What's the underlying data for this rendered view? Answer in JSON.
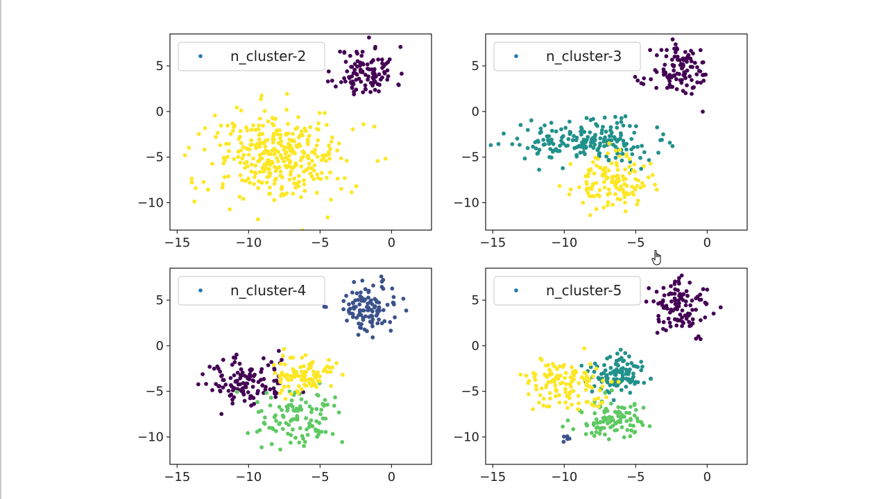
{
  "chart_data": [
    {
      "type": "scatter",
      "legend_label": "n_cluster-2",
      "legend_placement": "upper-left",
      "xlim": [
        -15.5,
        2.8
      ],
      "ylim": [
        -13.0,
        8.5
      ],
      "xticks": [
        "−15",
        "−10",
        "−5",
        "0"
      ],
      "xtick_values": [
        -15,
        -10,
        -5,
        0
      ],
      "yticks": [
        "5",
        "0",
        "−5",
        "−10"
      ],
      "ytick_values": [
        5,
        0,
        -5,
        -10
      ],
      "n_clusters": 2,
      "regions": [
        {
          "class": 0,
          "x": -1.8,
          "y": 4.3,
          "sx": 1.05,
          "sy": 1.4,
          "n": 110,
          "seed": 11
        },
        {
          "class": 1,
          "x": -7.8,
          "y": -5.0,
          "sx": 2.4,
          "sy": 2.6,
          "n": 330,
          "seed": 12
        }
      ]
    },
    {
      "type": "scatter",
      "legend_label": "n_cluster-3",
      "legend_placement": "upper-left",
      "xlim": [
        -15.5,
        2.8
      ],
      "ylim": [
        -13.0,
        8.5
      ],
      "xticks": [
        "−15",
        "−10",
        "−5",
        "0"
      ],
      "xtick_values": [
        -15,
        -10,
        -5,
        0
      ],
      "yticks": [
        "5",
        "0",
        "−5",
        "−10"
      ],
      "ytick_values": [
        5,
        0,
        -5,
        -10
      ],
      "n_clusters": 3,
      "regions": [
        {
          "class": 0,
          "x": -1.8,
          "y": 4.3,
          "sx": 1.05,
          "sy": 1.4,
          "n": 110,
          "seed": 21
        },
        {
          "class": 1,
          "x": -8.3,
          "y": -3.3,
          "sx": 2.3,
          "sy": 1.1,
          "n": 200,
          "seed": 22
        },
        {
          "class": 2,
          "x": -6.8,
          "y": -7.8,
          "sx": 1.3,
          "sy": 1.4,
          "n": 130,
          "seed": 23
        }
      ]
    },
    {
      "type": "scatter",
      "legend_label": "n_cluster-4",
      "legend_placement": "upper-left",
      "xlim": [
        -15.5,
        2.8
      ],
      "ylim": [
        -13.0,
        8.5
      ],
      "xticks": [
        "−15",
        "−10",
        "−5",
        "0"
      ],
      "xtick_values": [
        -15,
        -10,
        -5,
        0
      ],
      "yticks": [
        "5",
        "0",
        "−5",
        "−10"
      ],
      "ytick_values": [
        5,
        0,
        -5,
        -10
      ],
      "n_clusters": 4,
      "regions": [
        {
          "class": 0,
          "x": -10.3,
          "y": -4.0,
          "sx": 1.5,
          "sy": 1.4,
          "n": 120,
          "seed": 31
        },
        {
          "class": 1,
          "x": -1.8,
          "y": 4.3,
          "sx": 1.05,
          "sy": 1.4,
          "n": 110,
          "seed": 32
        },
        {
          "class": 2,
          "x": -6.7,
          "y": -8.0,
          "sx": 1.4,
          "sy": 1.5,
          "n": 110,
          "seed": 33
        },
        {
          "class": 3,
          "x": -6.3,
          "y": -3.2,
          "sx": 1.2,
          "sy": 1.1,
          "n": 100,
          "seed": 34
        }
      ]
    },
    {
      "type": "scatter",
      "legend_label": "n_cluster-5",
      "legend_placement": "upper-left",
      "xlim": [
        -15.5,
        2.8
      ],
      "ylim": [
        -13.0,
        8.5
      ],
      "xticks": [
        "−15",
        "−10",
        "−5",
        "0"
      ],
      "xtick_values": [
        -15,
        -10,
        -5,
        0
      ],
      "yticks": [
        "5",
        "0",
        "−5",
        "−10"
      ],
      "ytick_values": [
        5,
        0,
        -5,
        -10
      ],
      "n_clusters": 5,
      "regions": [
        {
          "class": 0,
          "x": -1.8,
          "y": 4.3,
          "sx": 1.05,
          "sy": 1.4,
          "n": 110,
          "seed": 41
        },
        {
          "class": 1,
          "x": -10.2,
          "y": -10.3,
          "sx": 0.3,
          "sy": 0.4,
          "n": 5,
          "seed": 42
        },
        {
          "class": 2,
          "x": -6.3,
          "y": -3.0,
          "sx": 1.1,
          "sy": 1.1,
          "n": 110,
          "seed": 43
        },
        {
          "class": 3,
          "x": -6.8,
          "y": -8.0,
          "sx": 1.3,
          "sy": 1.3,
          "n": 100,
          "seed": 44
        },
        {
          "class": 4,
          "x": -10.0,
          "y": -4.0,
          "sx": 1.5,
          "sy": 1.4,
          "n": 120,
          "seed": 45
        }
      ]
    }
  ],
  "colors": {
    "viridis_0": "#440154",
    "viridis_25": "#3b528b",
    "viridis_50": "#21918c",
    "viridis_75": "#5ec962",
    "viridis_100": "#fde725",
    "legend_marker": "#1f77b4",
    "axes": "#000000"
  },
  "cursor": "hand-pointer-icon"
}
